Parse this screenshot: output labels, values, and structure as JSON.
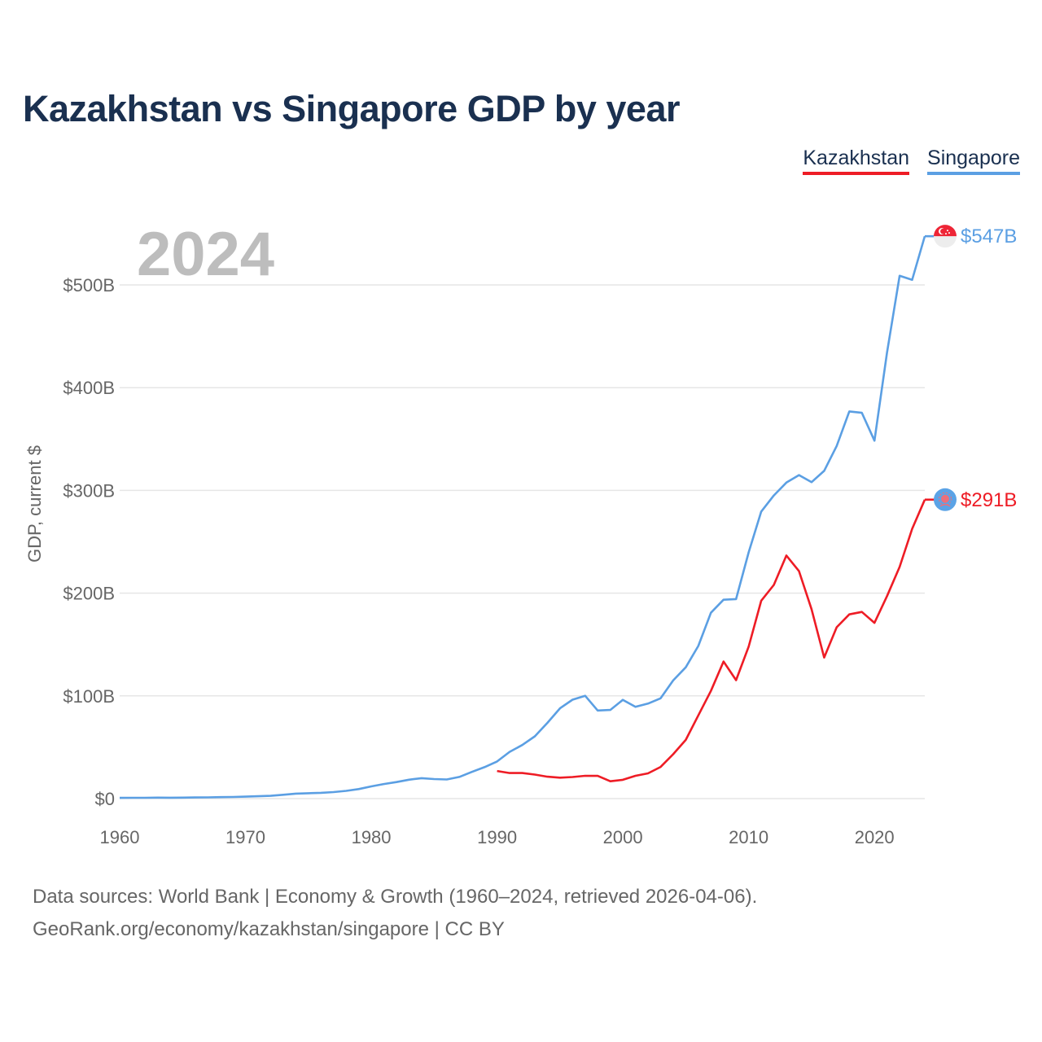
{
  "title": "Kazakhstan vs Singapore GDP by year",
  "legend": {
    "kazakhstan": "Kazakhstan",
    "singapore": "Singapore"
  },
  "year_watermark": "2024",
  "footer": {
    "line1": "Data sources: World Bank | Economy & Growth (1960–2024, retrieved 2026-04-06).",
    "line2": "GeoRank.org/economy/kazakhstan/singapore | CC BY"
  },
  "colors": {
    "kazakhstan": "#ee1c25",
    "singapore": "#5b9fe3",
    "grid": "#e6e6e6"
  },
  "chart_data": {
    "type": "line",
    "title": "Kazakhstan vs Singapore GDP by year",
    "xlabel": "",
    "ylabel": "GDP, current $",
    "xlim": [
      1960,
      2024
    ],
    "ylim": [
      0,
      547
    ],
    "x_ticks": [
      {
        "value": 1960,
        "label": "1960"
      },
      {
        "value": 1970,
        "label": "1970"
      },
      {
        "value": 1980,
        "label": "1980"
      },
      {
        "value": 1990,
        "label": "1990"
      },
      {
        "value": 2000,
        "label": "2000"
      },
      {
        "value": 2010,
        "label": "2010"
      },
      {
        "value": 2020,
        "label": "2020"
      }
    ],
    "y_ticks": [
      {
        "value": 0,
        "label": "$0"
      },
      {
        "value": 100,
        "label": "$100B"
      },
      {
        "value": 200,
        "label": "$200B"
      },
      {
        "value": 300,
        "label": "$300B"
      },
      {
        "value": 400,
        "label": "$400B"
      },
      {
        "value": 500,
        "label": "$500B"
      }
    ],
    "series": [
      {
        "name": "Singapore",
        "key": "singapore",
        "end_label": "$547B",
        "points": [
          [
            1960,
            0.7
          ],
          [
            1961,
            0.76
          ],
          [
            1962,
            0.82
          ],
          [
            1963,
            0.92
          ],
          [
            1964,
            0.89
          ],
          [
            1965,
            0.97
          ],
          [
            1966,
            1.1
          ],
          [
            1967,
            1.2
          ],
          [
            1968,
            1.4
          ],
          [
            1969,
            1.6
          ],
          [
            1970,
            1.9
          ],
          [
            1971,
            2.3
          ],
          [
            1972,
            2.7
          ],
          [
            1973,
            3.7
          ],
          [
            1974,
            4.8
          ],
          [
            1975,
            5.2
          ],
          [
            1976,
            5.6
          ],
          [
            1977,
            6.3
          ],
          [
            1978,
            7.5
          ],
          [
            1979,
            9.3
          ],
          [
            1980,
            11.9
          ],
          [
            1981,
            14.2
          ],
          [
            1982,
            16.1
          ],
          [
            1983,
            18.4
          ],
          [
            1984,
            19.9
          ],
          [
            1985,
            19.0
          ],
          [
            1986,
            18.6
          ],
          [
            1987,
            21.1
          ],
          [
            1988,
            26.0
          ],
          [
            1989,
            30.6
          ],
          [
            1990,
            36.1
          ],
          [
            1991,
            45.5
          ],
          [
            1992,
            52.1
          ],
          [
            1993,
            60.6
          ],
          [
            1994,
            73.7
          ],
          [
            1995,
            87.9
          ],
          [
            1996,
            96.3
          ],
          [
            1997,
            100.1
          ],
          [
            1998,
            85.7
          ],
          [
            1999,
            86.3
          ],
          [
            2000,
            96.1
          ],
          [
            2001,
            89.3
          ],
          [
            2002,
            92.5
          ],
          [
            2003,
            97.6
          ],
          [
            2004,
            115.0
          ],
          [
            2005,
            127.8
          ],
          [
            2006,
            148.6
          ],
          [
            2007,
            180.9
          ],
          [
            2008,
            193.6
          ],
          [
            2009,
            194.2
          ],
          [
            2010,
            239.8
          ],
          [
            2011,
            279.4
          ],
          [
            2012,
            295.1
          ],
          [
            2013,
            307.6
          ],
          [
            2014,
            314.9
          ],
          [
            2015,
            308.0
          ],
          [
            2016,
            319.0
          ],
          [
            2017,
            343.3
          ],
          [
            2018,
            376.9
          ],
          [
            2019,
            375.5
          ],
          [
            2020,
            348.4
          ],
          [
            2021,
            434.1
          ],
          [
            2022,
            508.9
          ],
          [
            2023,
            505.0
          ],
          [
            2024,
            547.4
          ]
        ]
      },
      {
        "name": "Kazakhstan",
        "key": "kazakhstan",
        "end_label": "$291B",
        "points": [
          [
            1990,
            26.9
          ],
          [
            1991,
            24.9
          ],
          [
            1992,
            24.9
          ],
          [
            1993,
            23.4
          ],
          [
            1994,
            21.3
          ],
          [
            1995,
            20.4
          ],
          [
            1996,
            21.0
          ],
          [
            1997,
            22.2
          ],
          [
            1998,
            22.1
          ],
          [
            1999,
            16.9
          ],
          [
            2000,
            18.3
          ],
          [
            2001,
            22.2
          ],
          [
            2002,
            24.6
          ],
          [
            2003,
            30.8
          ],
          [
            2004,
            43.2
          ],
          [
            2005,
            57.1
          ],
          [
            2006,
            81.0
          ],
          [
            2007,
            104.8
          ],
          [
            2008,
            133.4
          ],
          [
            2009,
            115.3
          ],
          [
            2010,
            148.0
          ],
          [
            2011,
            192.6
          ],
          [
            2012,
            208.0
          ],
          [
            2013,
            236.6
          ],
          [
            2014,
            221.4
          ],
          [
            2015,
            184.4
          ],
          [
            2016,
            137.3
          ],
          [
            2017,
            166.8
          ],
          [
            2018,
            179.3
          ],
          [
            2019,
            181.7
          ],
          [
            2020,
            171.1
          ],
          [
            2021,
            197.1
          ],
          [
            2022,
            225.5
          ],
          [
            2023,
            262.6
          ],
          [
            2024,
            291.0
          ]
        ]
      }
    ]
  }
}
